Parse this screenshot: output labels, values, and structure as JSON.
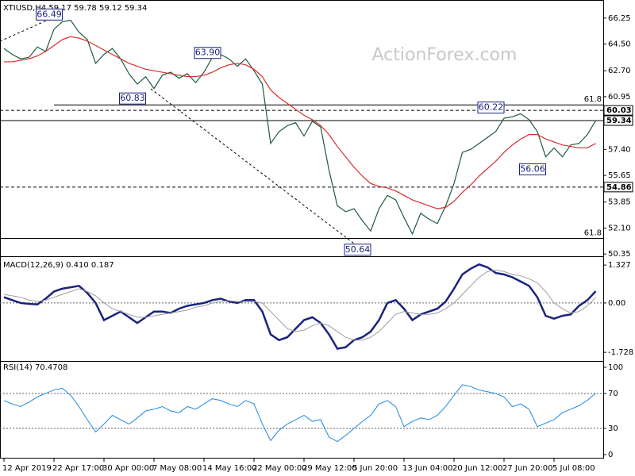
{
  "chart_data": [
    {
      "type": "line",
      "title": "XTIUSD,H4  59.17 59.78 59.12 59.34",
      "watermark": "ActionForex.com",
      "ylim": [
        50.2,
        67.2
      ],
      "yticks": [
        66.25,
        {
          "value": 64.5,
          "label": "64.50"
        },
        {
          "value": 62.7,
          "label": "62.70"
        },
        60.95,
        {
          "value": 57.4,
          "label": "57.40"
        },
        55.65,
        53.85,
        {
          "value": 52.1,
          "label": "52.10"
        },
        50.35
      ],
      "series": [
        {
          "color": "#1f5a3d",
          "values": [
            64.2,
            63.8,
            63.5,
            63.6,
            64.3,
            64.0,
            65.5,
            66.0,
            66.1,
            65.3,
            64.8,
            63.2,
            63.8,
            64.2,
            63.5,
            62.5,
            61.8,
            62.3,
            61.5,
            62.4,
            62.6,
            62.2,
            62.5,
            61.9,
            62.6,
            63.6,
            63.8,
            63.5,
            63.0,
            63.5,
            62.7,
            61.8,
            57.8,
            58.6,
            59.0,
            59.2,
            58.3,
            59.3,
            58.9,
            56.0,
            53.6,
            53.2,
            53.4,
            52.6,
            51.9,
            53.4,
            54.3,
            54.0,
            52.8,
            51.7,
            53.1,
            52.7,
            52.4,
            53.6,
            55.1,
            57.2,
            57.4,
            57.8,
            58.2,
            58.6,
            59.5,
            59.6,
            59.8,
            59.4,
            58.6,
            56.9,
            57.5,
            56.9,
            57.7,
            57.8,
            58.4,
            59.34
          ]
        },
        {
          "color": "#d32f2f",
          "values": [
            63.3,
            63.3,
            63.4,
            63.5,
            63.7,
            64.0,
            64.4,
            64.8,
            65.0,
            64.9,
            64.7,
            64.4,
            64.1,
            63.8,
            63.5,
            63.2,
            63.0,
            62.8,
            62.7,
            62.6,
            62.5,
            62.4,
            62.3,
            62.3,
            62.4,
            62.6,
            62.9,
            63.1,
            63.2,
            63.1,
            62.8,
            62.3,
            61.4,
            60.9,
            60.5,
            60.1,
            59.7,
            59.4,
            59.0,
            58.4,
            57.6,
            56.9,
            56.2,
            55.6,
            55.1,
            54.9,
            54.8,
            54.6,
            54.3,
            54.0,
            53.8,
            53.6,
            53.4,
            53.5,
            53.9,
            54.5,
            55.0,
            55.6,
            56.1,
            56.6,
            57.2,
            57.7,
            58.1,
            58.4,
            58.4,
            58.1,
            57.9,
            57.7,
            57.6,
            57.5,
            57.5,
            57.8
          ]
        }
      ],
      "levels": [
        {
          "value": 60.03,
          "style": "dashed"
        },
        {
          "value": 59.34,
          "style": "solid"
        },
        {
          "value": 54.86,
          "style": "dashed"
        }
      ],
      "fib_levels": [
        {
          "value": 60.4,
          "label": "61.8"
        },
        {
          "value": 51.4,
          "label": "61.8"
        }
      ],
      "annotations": [
        {
          "x": 7,
          "value": 66.49
        },
        {
          "x": 17,
          "value": 60.83
        },
        {
          "x": 26,
          "value": 63.9,
          "label": "63.90"
        },
        {
          "x": 44,
          "value": 50.64
        },
        {
          "x": 60,
          "value": 60.22
        },
        {
          "x": 65,
          "value": 56.06
        }
      ]
    },
    {
      "type": "line",
      "title": "MACD(12,26,9) 0.410 0.187",
      "ylim": [
        -2.03,
        1.58
      ],
      "yticks": [
        1.327,
        {
          "value": 0,
          "label": "0.00"
        },
        -1.728
      ],
      "zero_line": 0,
      "series": [
        {
          "color": "#1a237e",
          "width": 2.5,
          "values": [
            0.2,
            0.1,
            0.0,
            -0.03,
            -0.05,
            0.15,
            0.4,
            0.5,
            0.55,
            0.6,
            0.35,
            0.0,
            -0.6,
            -0.45,
            -0.3,
            -0.5,
            -0.7,
            -0.5,
            -0.3,
            -0.3,
            -0.35,
            -0.2,
            -0.1,
            -0.05,
            0.0,
            0.1,
            0.15,
            0.05,
            0.0,
            0.1,
            0.1,
            -0.3,
            -1.1,
            -1.3,
            -1.2,
            -0.9,
            -0.6,
            -0.5,
            -0.7,
            -1.1,
            -1.6,
            -1.55,
            -1.3,
            -1.2,
            -1.0,
            -0.6,
            0.0,
            0.1,
            -0.2,
            -0.6,
            -0.4,
            -0.3,
            -0.2,
            0.05,
            0.5,
            1.0,
            1.2,
            1.35,
            1.25,
            1.05,
            1.0,
            0.9,
            0.75,
            0.6,
            0.2,
            -0.45,
            -0.55,
            -0.45,
            -0.4,
            -0.1,
            0.1,
            0.41
          ]
        },
        {
          "color": "#9e9e9e",
          "width": 1,
          "values": [
            0.3,
            0.25,
            0.2,
            0.1,
            0.05,
            0.1,
            0.2,
            0.3,
            0.4,
            0.5,
            0.4,
            0.25,
            0.0,
            -0.2,
            -0.3,
            -0.4,
            -0.5,
            -0.5,
            -0.45,
            -0.4,
            -0.35,
            -0.3,
            -0.25,
            -0.15,
            -0.1,
            0.0,
            0.05,
            0.08,
            0.05,
            0.05,
            0.05,
            0.0,
            -0.3,
            -0.6,
            -0.9,
            -1.0,
            -0.95,
            -0.8,
            -0.7,
            -0.8,
            -1.0,
            -1.2,
            -1.3,
            -1.3,
            -1.2,
            -1.0,
            -0.7,
            -0.4,
            -0.3,
            -0.35,
            -0.4,
            -0.4,
            -0.35,
            -0.2,
            0.0,
            0.3,
            0.6,
            0.9,
            1.1,
            1.15,
            1.1,
            1.0,
            0.95,
            0.85,
            0.7,
            0.4,
            0.0,
            -0.2,
            -0.35,
            -0.3,
            -0.1,
            0.187
          ]
        }
      ]
    },
    {
      "type": "line",
      "title": "RSI(14) 70.4708",
      "ylim": [
        -4.5,
        105.4
      ],
      "yticks": [
        100,
        70,
        30,
        0
      ],
      "guide_lines": [
        70,
        30
      ],
      "series": [
        {
          "color": "#1e88e5",
          "width": 1,
          "values": [
            62,
            58,
            55,
            60,
            66,
            70,
            74,
            76,
            68,
            55,
            40,
            26,
            35,
            45,
            40,
            35,
            42,
            50,
            52,
            55,
            50,
            48,
            55,
            52,
            58,
            64,
            62,
            58,
            55,
            62,
            58,
            35,
            16,
            28,
            35,
            40,
            45,
            38,
            40,
            20,
            15,
            22,
            30,
            38,
            45,
            58,
            62,
            55,
            32,
            38,
            42,
            40,
            45,
            55,
            68,
            80,
            78,
            74,
            72,
            70,
            66,
            55,
            58,
            52,
            32,
            36,
            40,
            48,
            52,
            56,
            62,
            70.47
          ]
        }
      ],
      "categories": [
        "12 Apr 2019",
        null,
        null,
        null,
        null,
        null,
        "22 Apr 17:00",
        null,
        null,
        null,
        null,
        null,
        "30 Apr 00:00",
        null,
        null,
        null,
        null,
        null,
        "7 May 08:00",
        null,
        null,
        null,
        null,
        null,
        "14 May 16:00",
        null,
        null,
        null,
        null,
        null,
        "22 May 00:00",
        null,
        null,
        null,
        null,
        null,
        "29 May 12:00",
        null,
        null,
        null,
        null,
        null,
        "5 Jun 20:00",
        null,
        null,
        null,
        null,
        null,
        "13 Jun 04:00",
        null,
        null,
        null,
        null,
        null,
        "20 Jun 12:00",
        null,
        null,
        null,
        null,
        null,
        "27 Jun 20:00",
        null,
        null,
        null,
        null,
        null,
        "5 Jul 08:00",
        null,
        null,
        null,
        null,
        null
      ]
    }
  ]
}
